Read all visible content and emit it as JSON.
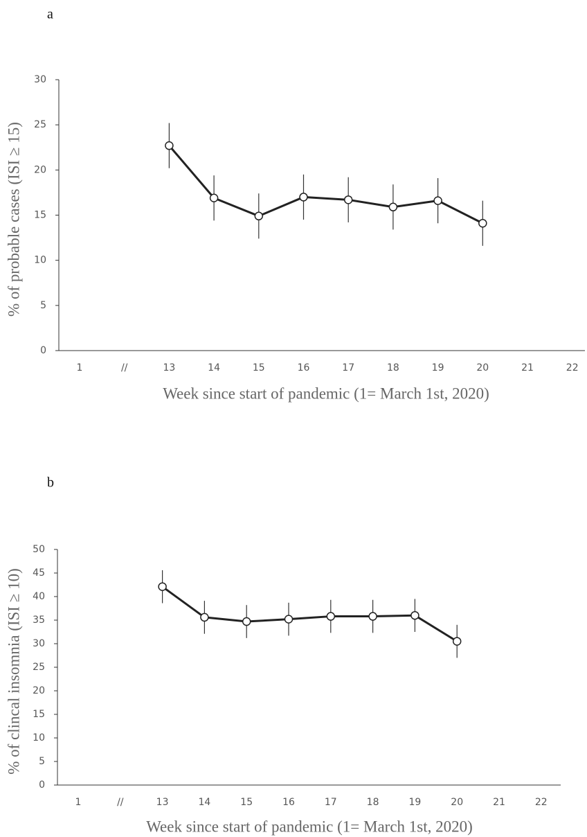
{
  "chart_data": [
    {
      "type": "line",
      "title": "a",
      "x_label": "Week since start of pandemic (1= March 1st, 2020)",
      "y_label": "% of probable cases (ISI ≥ 15)",
      "categories": [
        "1",
        "//",
        "13",
        "14",
        "15",
        "16",
        "17",
        "18",
        "19",
        "20",
        "21",
        "22"
      ],
      "values": [
        null,
        null,
        22.7,
        16.9,
        14.9,
        17.0,
        16.7,
        15.9,
        16.6,
        14.1,
        null,
        null
      ],
      "errors": [
        null,
        null,
        2.5,
        2.5,
        2.5,
        2.5,
        2.5,
        2.5,
        2.5,
        2.5,
        null,
        null
      ],
      "color": "#222222",
      "ylim": [
        0,
        30
      ],
      "yticks": [
        0,
        5,
        10,
        15,
        20,
        25,
        30
      ],
      "grid": false
    },
    {
      "type": "line",
      "title": "b",
      "x_label": "Week since start of pandemic (1= March 1st, 2020)",
      "y_label": "% of clincal insomnia (ISI ≥ 10)",
      "categories": [
        "1",
        "//",
        "13",
        "14",
        "15",
        "16",
        "17",
        "18",
        "19",
        "20",
        "21",
        "22"
      ],
      "values": [
        null,
        null,
        42.1,
        35.6,
        34.7,
        35.2,
        35.8,
        35.8,
        36.0,
        30.5,
        null,
        null
      ],
      "errors": [
        null,
        null,
        3.5,
        3.5,
        3.5,
        3.5,
        3.5,
        3.5,
        3.5,
        3.5,
        null,
        null
      ],
      "color": "#222222",
      "ylim": [
        0,
        50
      ],
      "yticks": [
        0,
        5,
        10,
        15,
        20,
        25,
        30,
        35,
        40,
        45,
        50
      ],
      "grid": false
    }
  ]
}
